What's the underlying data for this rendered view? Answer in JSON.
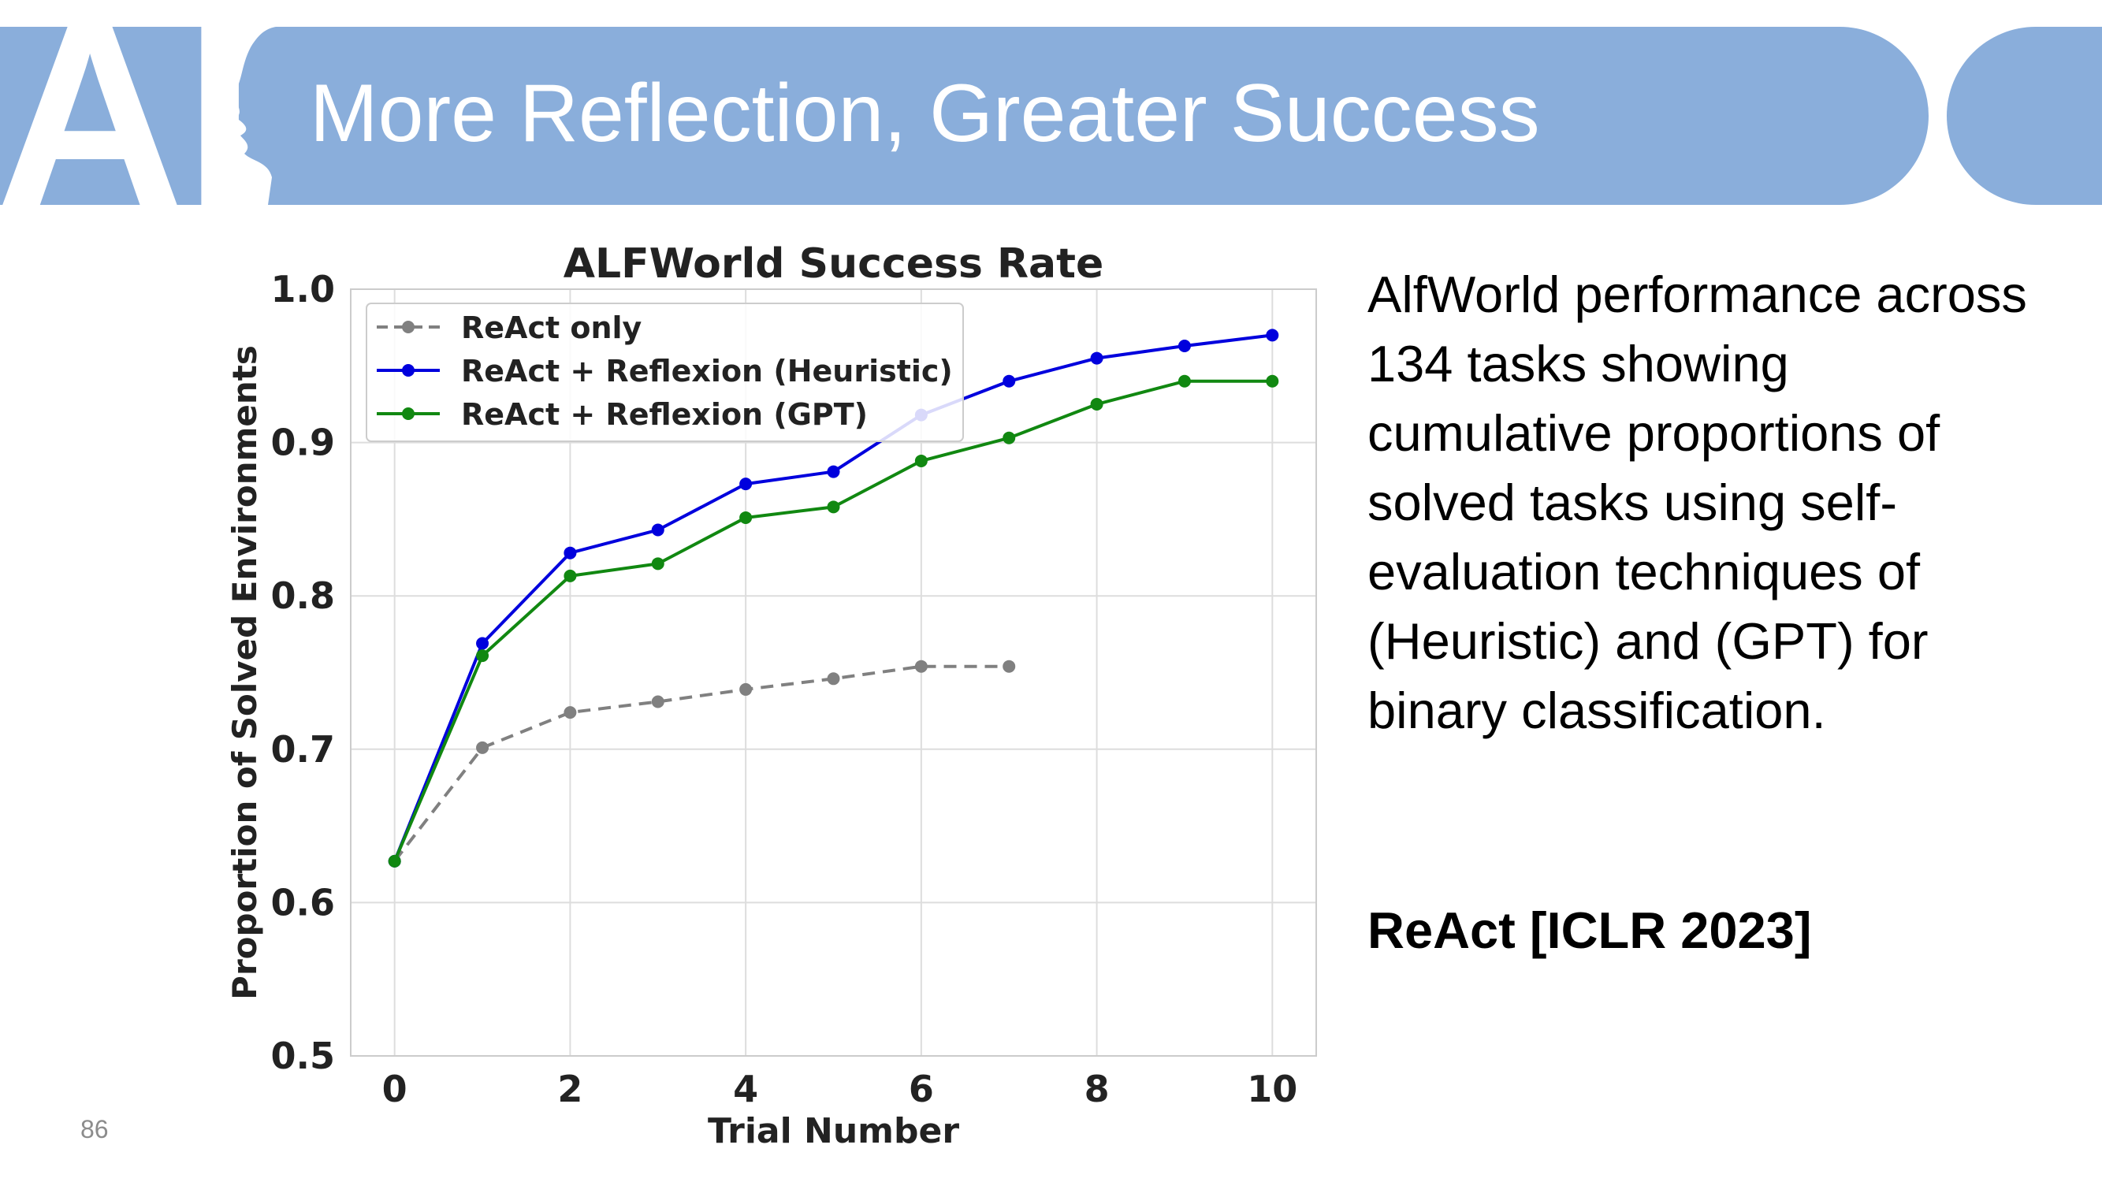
{
  "slide": {
    "title": "More Reflection, Greater Success",
    "logo_text": "AI",
    "description": "AlfWorld performance across 134 tasks showing cumulative proportions of solved tasks using self-evaluation techniques of (Heuristic) and (GPT) for binary classification.",
    "citation": "ReAct [ICLR 2023]",
    "page_number": "86",
    "accent_color": "#8aaedb"
  },
  "chart_data": {
    "type": "line",
    "title": "ALFWorld Success Rate",
    "xlabel": "Trial Number",
    "ylabel": "Proportion of Solved Environments",
    "xlim": [
      -0.5,
      10.5
    ],
    "ylim": [
      0.5,
      1.0
    ],
    "xticks": [
      0,
      2,
      4,
      6,
      8,
      10
    ],
    "yticks": [
      0.5,
      0.6,
      0.7,
      0.8,
      0.9,
      1.0
    ],
    "grid": true,
    "legend_position": "top-left",
    "series": [
      {
        "name": "ReAct only",
        "color": "#808080",
        "dashed": true,
        "x": [
          0,
          1,
          2,
          3,
          4,
          5,
          6,
          7
        ],
        "y": [
          0.627,
          0.701,
          0.724,
          0.731,
          0.739,
          0.746,
          0.754,
          0.754
        ]
      },
      {
        "name": "ReAct + Reflexion (Heuristic)",
        "color": "#0000dd",
        "dashed": false,
        "x": [
          0,
          1,
          2,
          3,
          4,
          5,
          6,
          7,
          8,
          9,
          10
        ],
        "y": [
          0.627,
          0.769,
          0.828,
          0.843,
          0.873,
          0.881,
          0.918,
          0.94,
          0.955,
          0.963,
          0.97
        ]
      },
      {
        "name": "ReAct + Reflexion (GPT)",
        "color": "#118811",
        "dashed": false,
        "x": [
          0,
          1,
          2,
          3,
          4,
          5,
          6,
          7,
          8,
          9,
          10
        ],
        "y": [
          0.627,
          0.761,
          0.813,
          0.821,
          0.851,
          0.858,
          0.888,
          0.903,
          0.925,
          0.94,
          0.94
        ]
      }
    ]
  }
}
